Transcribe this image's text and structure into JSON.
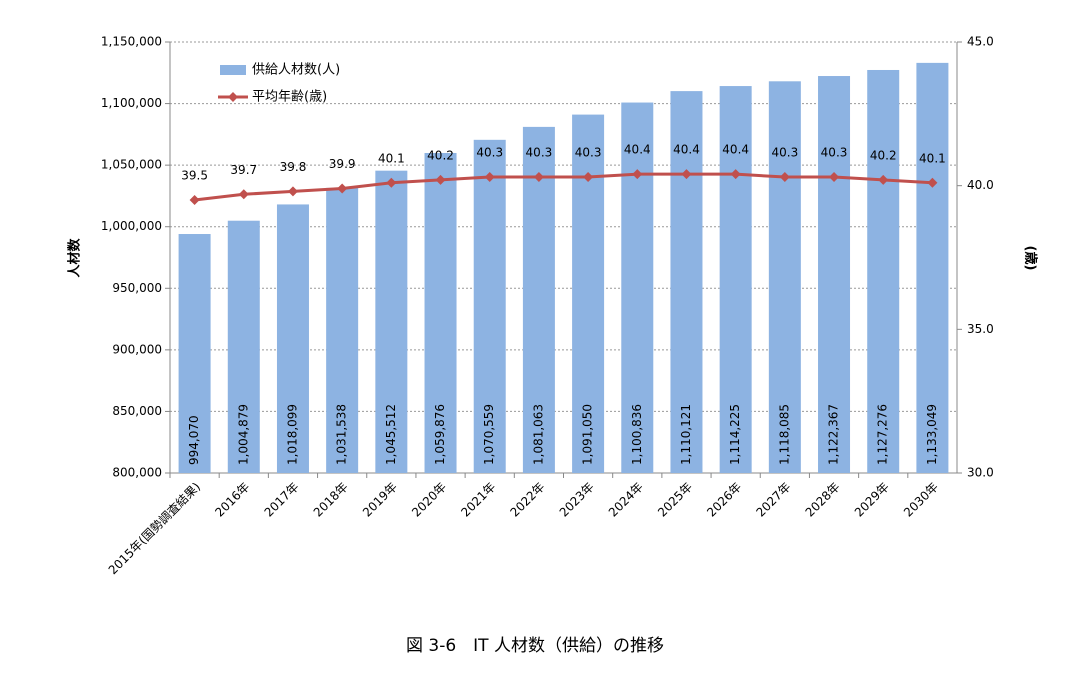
{
  "chart_data": {
    "type": "bar_line",
    "caption": "図 3-6　IT 人材数（供給）の推移",
    "y_label": "人材数",
    "y2_label": "(歳)",
    "categories": [
      "2015年(国勢調査結果)",
      "2016年",
      "2017年",
      "2018年",
      "2019年",
      "2020年",
      "2021年",
      "2022年",
      "2023年",
      "2024年",
      "2025年",
      "2026年",
      "2027年",
      "2028年",
      "2029年",
      "2030年"
    ],
    "series": [
      {
        "name": "供給人材数(人)",
        "color": "#8db3e2",
        "type": "bar",
        "values": [
          994070,
          1004879,
          1018099,
          1031538,
          1045512,
          1059876,
          1070559,
          1081063,
          1091050,
          1100836,
          1110121,
          1114225,
          1118085,
          1122367,
          1127276,
          1133049
        ],
        "value_labels": [
          "994,070",
          "1,004,879",
          "1,018,099",
          "1,031,538",
          "1,045,512",
          "1,059,876",
          "1,070,559",
          "1,081,063",
          "1,091,050",
          "1,100,836",
          "1,110,121",
          "1,114,225",
          "1,118,085",
          "1,122,367",
          "1,127,276",
          "1,133,049"
        ]
      },
      {
        "name": "平均年齢(歳)",
        "color": "#c0504d",
        "type": "line",
        "axis": "y2",
        "values": [
          39.5,
          39.7,
          39.8,
          39.9,
          40.1,
          40.2,
          40.3,
          40.3,
          40.3,
          40.4,
          40.4,
          40.4,
          40.3,
          40.3,
          40.2,
          40.1
        ]
      }
    ],
    "ylim": [
      800000,
      1150000
    ],
    "yticks": [
      {
        "value": 800000,
        "label": "800,000"
      },
      {
        "value": 850000,
        "label": "850,000"
      },
      {
        "value": 900000,
        "label": "900,000"
      },
      {
        "value": 950000,
        "label": "950,000"
      },
      {
        "value": 1000000,
        "label": "1,000,000"
      },
      {
        "value": 1050000,
        "label": "1,050,000"
      },
      {
        "value": 1100000,
        "label": "1,100,000"
      },
      {
        "value": 1150000,
        "label": "1,150,000"
      }
    ],
    "y2lim": [
      30,
      45
    ],
    "y2ticks": [
      {
        "value": 30,
        "label": "30.0"
      },
      {
        "value": 35,
        "label": "35.0"
      },
      {
        "value": 40,
        "label": "40.0"
      },
      {
        "value": 45,
        "label": "45.0"
      }
    ],
    "grid": true,
    "legend": "upper left"
  }
}
